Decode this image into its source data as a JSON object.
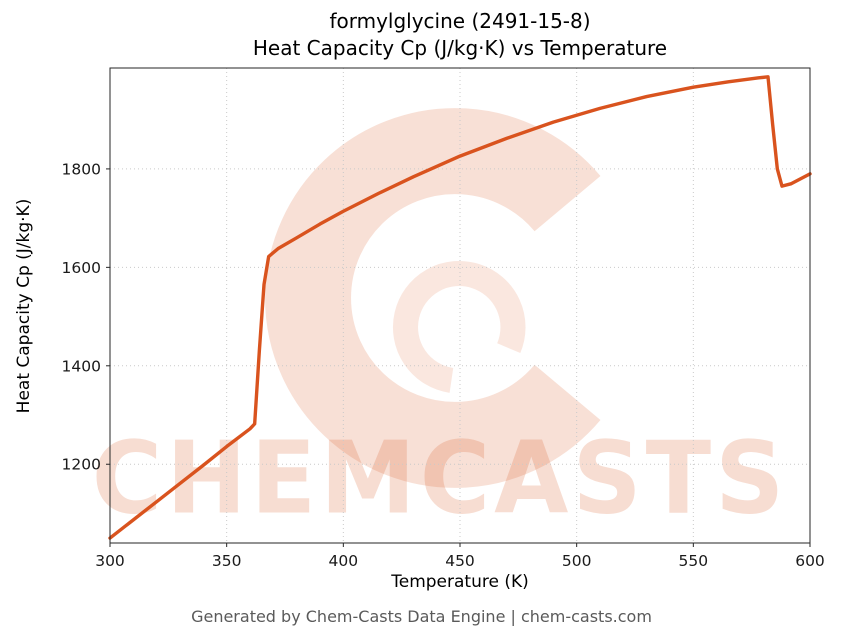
{
  "title": {
    "line1": "formylglycine (2491-15-8)",
    "line2": "Heat Capacity Cp (J/kg·K) vs Temperature"
  },
  "watermark": {
    "text": "CHEMCASTS",
    "color": "#d9531e"
  },
  "footer": {
    "text": "Generated by Chem-Casts Data Engine | chem-casts.com"
  },
  "chart_data": {
    "type": "line",
    "title": "formylglycine (2491-15-8) Heat Capacity Cp (J/kg·K) vs Temperature",
    "xlabel": "Temperature (K)",
    "ylabel": "Heat Capacity Cp (J/kg·K)",
    "xlim": [
      300,
      600
    ],
    "ylim": [
      1040,
      2005
    ],
    "xticks": [
      300,
      350,
      400,
      450,
      500,
      550,
      600
    ],
    "yticks": [
      1200,
      1400,
      1600,
      1800
    ],
    "grid": "dotted",
    "legend": "none",
    "line_color": "#d9531e",
    "series": [
      {
        "name": "Heat Capacity Cp",
        "points": [
          [
            300,
            1050
          ],
          [
            310,
            1087
          ],
          [
            320,
            1124
          ],
          [
            330,
            1161
          ],
          [
            340,
            1198
          ],
          [
            350,
            1236
          ],
          [
            360,
            1272
          ],
          [
            362,
            1282
          ],
          [
            364,
            1430
          ],
          [
            366,
            1565
          ],
          [
            368,
            1622
          ],
          [
            372,
            1638
          ],
          [
            380,
            1660
          ],
          [
            390,
            1688
          ],
          [
            400,
            1714
          ],
          [
            415,
            1750
          ],
          [
            430,
            1784
          ],
          [
            450,
            1826
          ],
          [
            470,
            1862
          ],
          [
            490,
            1895
          ],
          [
            510,
            1923
          ],
          [
            530,
            1947
          ],
          [
            550,
            1966
          ],
          [
            565,
            1977
          ],
          [
            578,
            1985
          ],
          [
            582,
            1987
          ],
          [
            584,
            1890
          ],
          [
            586,
            1800
          ],
          [
            588,
            1765
          ],
          [
            592,
            1770
          ],
          [
            596,
            1780
          ],
          [
            600,
            1790
          ]
        ]
      }
    ]
  }
}
